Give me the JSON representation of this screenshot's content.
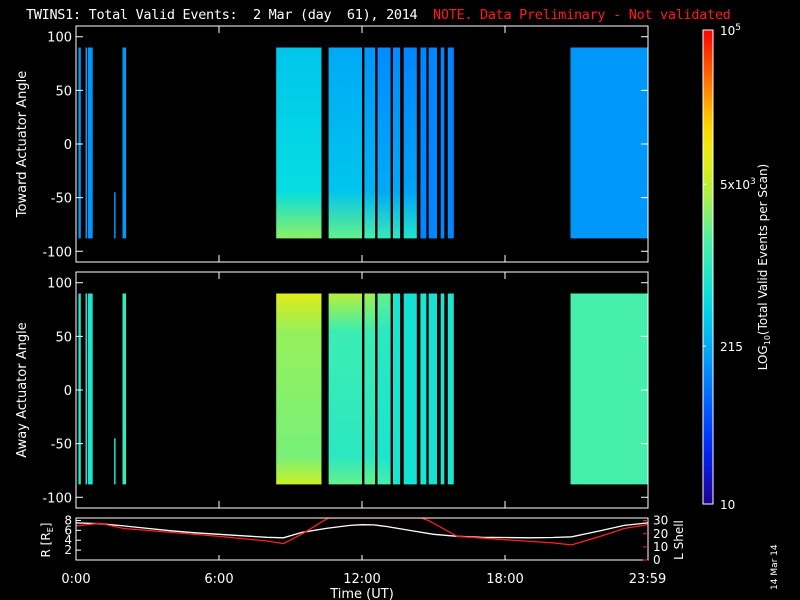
{
  "title": {
    "main": "TWINS1: Total Valid Events:  2 Mar (day  61), 2014",
    "note": "NOTE. Data Preliminary - Not validated"
  },
  "stamp": "14 Mar 14",
  "colors": {
    "note": "#ff1a1a",
    "r_line": "#ffffff",
    "lshell_line": "#ff2020"
  },
  "colorbar": {
    "label": "LOG10(Total Valid Events per Scan)",
    "label_main": "LOG",
    "label_sub": "10",
    "label_rest": "(Total Valid Events per Scan)",
    "ticks": [
      {
        "text": "10",
        "value": 10
      },
      {
        "text": "215",
        "value": 215
      },
      {
        "text": "5x10",
        "sup": "3",
        "value": 5000
      },
      {
        "text": "10",
        "sup": "5",
        "value": 100000
      }
    ],
    "range": [
      10,
      100000
    ],
    "scale": "log"
  },
  "chart_data": [
    {
      "type": "heatmap",
      "panel": "toward",
      "ylabel": "Toward Actuator Angle",
      "yticks": [
        "100",
        "50",
        "0",
        "-50",
        "-100"
      ],
      "ylim": [
        -110,
        110
      ],
      "xlim": [
        0,
        24
      ],
      "coverage_y": [
        -88,
        90
      ],
      "segments": [
        {
          "t0": 0.1,
          "t1": 0.2,
          "level": 0.3
        },
        {
          "t0": 0.4,
          "t1": 0.45,
          "level": 0.3
        },
        {
          "t0": 0.5,
          "t1": 0.7,
          "level": 0.3
        },
        {
          "t0": 1.6,
          "t1": 1.65,
          "level": 0.3,
          "ymax": -45
        },
        {
          "t0": 1.95,
          "t1": 2.1,
          "level": 0.3
        },
        {
          "t0": 8.4,
          "t1": 10.3,
          "level": 0.38,
          "hot": 0.62
        },
        {
          "t0": 10.6,
          "t1": 12.0,
          "level": 0.33,
          "hot": 0.58
        },
        {
          "t0": 12.1,
          "t1": 12.55,
          "level": 0.3,
          "hot": 0.55
        },
        {
          "t0": 12.65,
          "t1": 13.2,
          "level": 0.28,
          "hot": 0.52
        },
        {
          "t0": 13.3,
          "t1": 13.6,
          "level": 0.28,
          "hot": 0.5
        },
        {
          "t0": 13.75,
          "t1": 14.3,
          "level": 0.27,
          "hot": 0.48
        },
        {
          "t0": 14.45,
          "t1": 14.7,
          "level": 0.27
        },
        {
          "t0": 14.8,
          "t1": 15.15,
          "level": 0.27
        },
        {
          "t0": 15.3,
          "t1": 15.45,
          "level": 0.27
        },
        {
          "t0": 15.6,
          "t1": 15.85,
          "level": 0.27
        },
        {
          "t0": 20.75,
          "t1": 23.98,
          "level": 0.3
        }
      ]
    },
    {
      "type": "heatmap",
      "panel": "away",
      "ylabel": "Away Actuator Angle",
      "yticks": [
        "100",
        "50",
        "0",
        "-50",
        "-100"
      ],
      "ylim": [
        -110,
        110
      ],
      "xlim": [
        0,
        24
      ],
      "coverage_y": [
        -88,
        90
      ],
      "segments": [
        {
          "t0": 0.1,
          "t1": 0.2,
          "level": 0.47
        },
        {
          "t0": 0.4,
          "t1": 0.45,
          "level": 0.47
        },
        {
          "t0": 0.5,
          "t1": 0.7,
          "level": 0.47
        },
        {
          "t0": 1.6,
          "t1": 1.65,
          "level": 0.47,
          "ymax": -45
        },
        {
          "t0": 1.95,
          "t1": 2.1,
          "level": 0.52
        },
        {
          "t0": 8.4,
          "t1": 10.3,
          "level": 0.6,
          "hot": 0.72
        },
        {
          "t0": 10.6,
          "t1": 12.0,
          "level": 0.5,
          "hot": 0.66
        },
        {
          "t0": 12.1,
          "t1": 12.55,
          "level": 0.5,
          "hot": 0.64
        },
        {
          "t0": 12.65,
          "t1": 13.2,
          "level": 0.47,
          "hot": 0.58
        },
        {
          "t0": 13.3,
          "t1": 13.6,
          "level": 0.47
        },
        {
          "t0": 13.75,
          "t1": 14.3,
          "level": 0.46
        },
        {
          "t0": 14.45,
          "t1": 14.7,
          "level": 0.47
        },
        {
          "t0": 14.8,
          "t1": 15.15,
          "level": 0.46
        },
        {
          "t0": 15.3,
          "t1": 15.45,
          "level": 0.47
        },
        {
          "t0": 15.6,
          "t1": 15.85,
          "level": 0.47
        },
        {
          "t0": 20.75,
          "t1": 23.98,
          "level": 0.55
        }
      ]
    },
    {
      "type": "line",
      "panel": "orbit",
      "ylabel": "R [RE]",
      "ylabel_main": "R [R",
      "ylabel_sub": "E",
      "ylabel_end": "]",
      "y2label": "L Shell",
      "xlabel": "Time (UT)",
      "xticks": [
        "0:00",
        "6:00",
        "12:00",
        "18:00",
        "23:59"
      ],
      "xtick_values": [
        0,
        6,
        12,
        18,
        23.98
      ],
      "yticks": [
        "2",
        "4",
        "6",
        "8"
      ],
      "ylim": [
        0,
        8.5
      ],
      "y2ticks": [
        "0",
        "10",
        "20",
        "30"
      ],
      "y2lim": [
        0,
        32
      ],
      "series": [
        {
          "name": "R",
          "axis": "left",
          "x": [
            0,
            1,
            2,
            3,
            4,
            5,
            6,
            7,
            8,
            8.7,
            9.5,
            10.5,
            11.5,
            12,
            12.5,
            13,
            14,
            15,
            16,
            17,
            18,
            19,
            20,
            20.8,
            22,
            23,
            23.98
          ],
          "y": [
            7.5,
            7.35,
            6.9,
            6.4,
            5.9,
            5.5,
            5.2,
            4.9,
            4.6,
            4.5,
            5.6,
            6.4,
            7.0,
            7.15,
            7.1,
            6.8,
            6.0,
            5.2,
            4.8,
            4.6,
            4.55,
            4.5,
            4.55,
            4.7,
            5.9,
            7.0,
            7.5
          ]
        },
        {
          "name": "L Shell",
          "axis": "right",
          "x": [
            0,
            1,
            2,
            4,
            6,
            8,
            8.7,
            9.5,
            10.4,
            10.6,
            14.5,
            14.8,
            16,
            18,
            20,
            20.8,
            22,
            23,
            23.98
          ],
          "y": [
            26,
            28,
            24,
            21,
            18,
            14.5,
            12.5,
            20,
            30,
            32,
            32,
            30,
            18,
            15.5,
            13,
            11.5,
            18,
            24,
            27
          ]
        }
      ]
    }
  ]
}
